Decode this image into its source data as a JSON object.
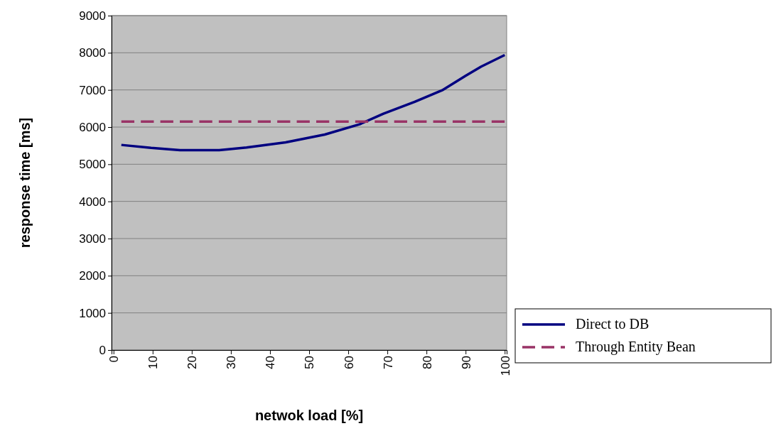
{
  "chart_data": {
    "type": "line",
    "xlabel": "netwok load [%]",
    "ylabel": "response time [ms]",
    "xlim": [
      -0.5,
      100.5
    ],
    "xticks": [
      0,
      10,
      20,
      30,
      40,
      50,
      60,
      70,
      80,
      90,
      100
    ],
    "ylim": [
      0,
      9000
    ],
    "yticks": [
      0,
      1000,
      2000,
      3000,
      4000,
      5000,
      6000,
      7000,
      8000,
      9000
    ],
    "grid": "y",
    "legend": "bottom right",
    "series": [
      {
        "name": "Direct to DB",
        "color": "#000080",
        "line_style": "solid",
        "x": [
          2,
          9.6,
          17,
          27,
          34,
          44,
          54,
          63,
          69,
          77,
          84,
          90,
          94,
          100
        ],
        "values": [
          5520,
          5440,
          5380,
          5380,
          5450,
          5590,
          5800,
          6080,
          6360,
          6680,
          6990,
          7380,
          7630,
          7940
        ]
      },
      {
        "name": "Through Entity Bean",
        "color": "#993366",
        "line_style": "dashed",
        "x": [
          2,
          100
        ],
        "values": [
          6150,
          6150
        ]
      }
    ]
  }
}
